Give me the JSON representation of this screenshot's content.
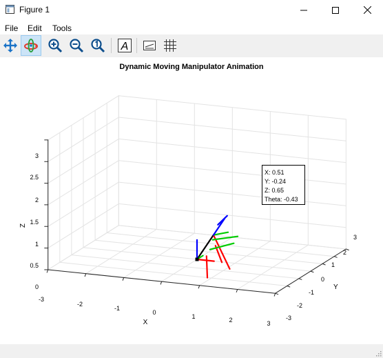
{
  "window": {
    "title": "Figure 1"
  },
  "menu": {
    "items": [
      "File",
      "Edit",
      "Tools"
    ]
  },
  "toolbar": {
    "tools": [
      "pan-icon",
      "rotate-3d-icon",
      "zoom-in-icon",
      "zoom-out-icon",
      "zoom-reset-icon",
      "insert-text-icon",
      "insert-legend-icon",
      "grid-icon"
    ],
    "active_tool": "rotate-3d-icon"
  },
  "plot": {
    "title": "Dynamic Moving Manipulator Animation",
    "xlabel": "X",
    "ylabel": "Y",
    "zlabel": "Z",
    "x_ticks": [
      "-3",
      "-2",
      "-1",
      "0",
      "1",
      "2",
      "3"
    ],
    "y_ticks": [
      "-3",
      "-2",
      "-1",
      "0",
      "1",
      "2",
      "3"
    ],
    "z_ticks": [
      "0",
      "0.5",
      "1",
      "1.5",
      "2",
      "2.5",
      "3"
    ],
    "annotation": {
      "x": "X: 0.51",
      "y": "Y: -0.24",
      "z": "Z: 0.65",
      "theta": "Theta: -0.43"
    }
  },
  "chart_data": {
    "type": "scatter",
    "title": "Dynamic Moving Manipulator Animation",
    "xlabel": "X",
    "ylabel": "Y",
    "zlabel": "Z",
    "xlim": [
      -3,
      3
    ],
    "ylim": [
      -3,
      3
    ],
    "zlim": [
      0,
      3
    ],
    "grid": true,
    "point": {
      "x": 0.51,
      "y": -0.24,
      "z": 0.65,
      "theta": -0.43
    },
    "colors": {
      "x_axis_frame": "#ff0000",
      "y_axis_frame": "#00cc00",
      "z_axis_frame": "#0000ff",
      "link": "#000000"
    }
  }
}
